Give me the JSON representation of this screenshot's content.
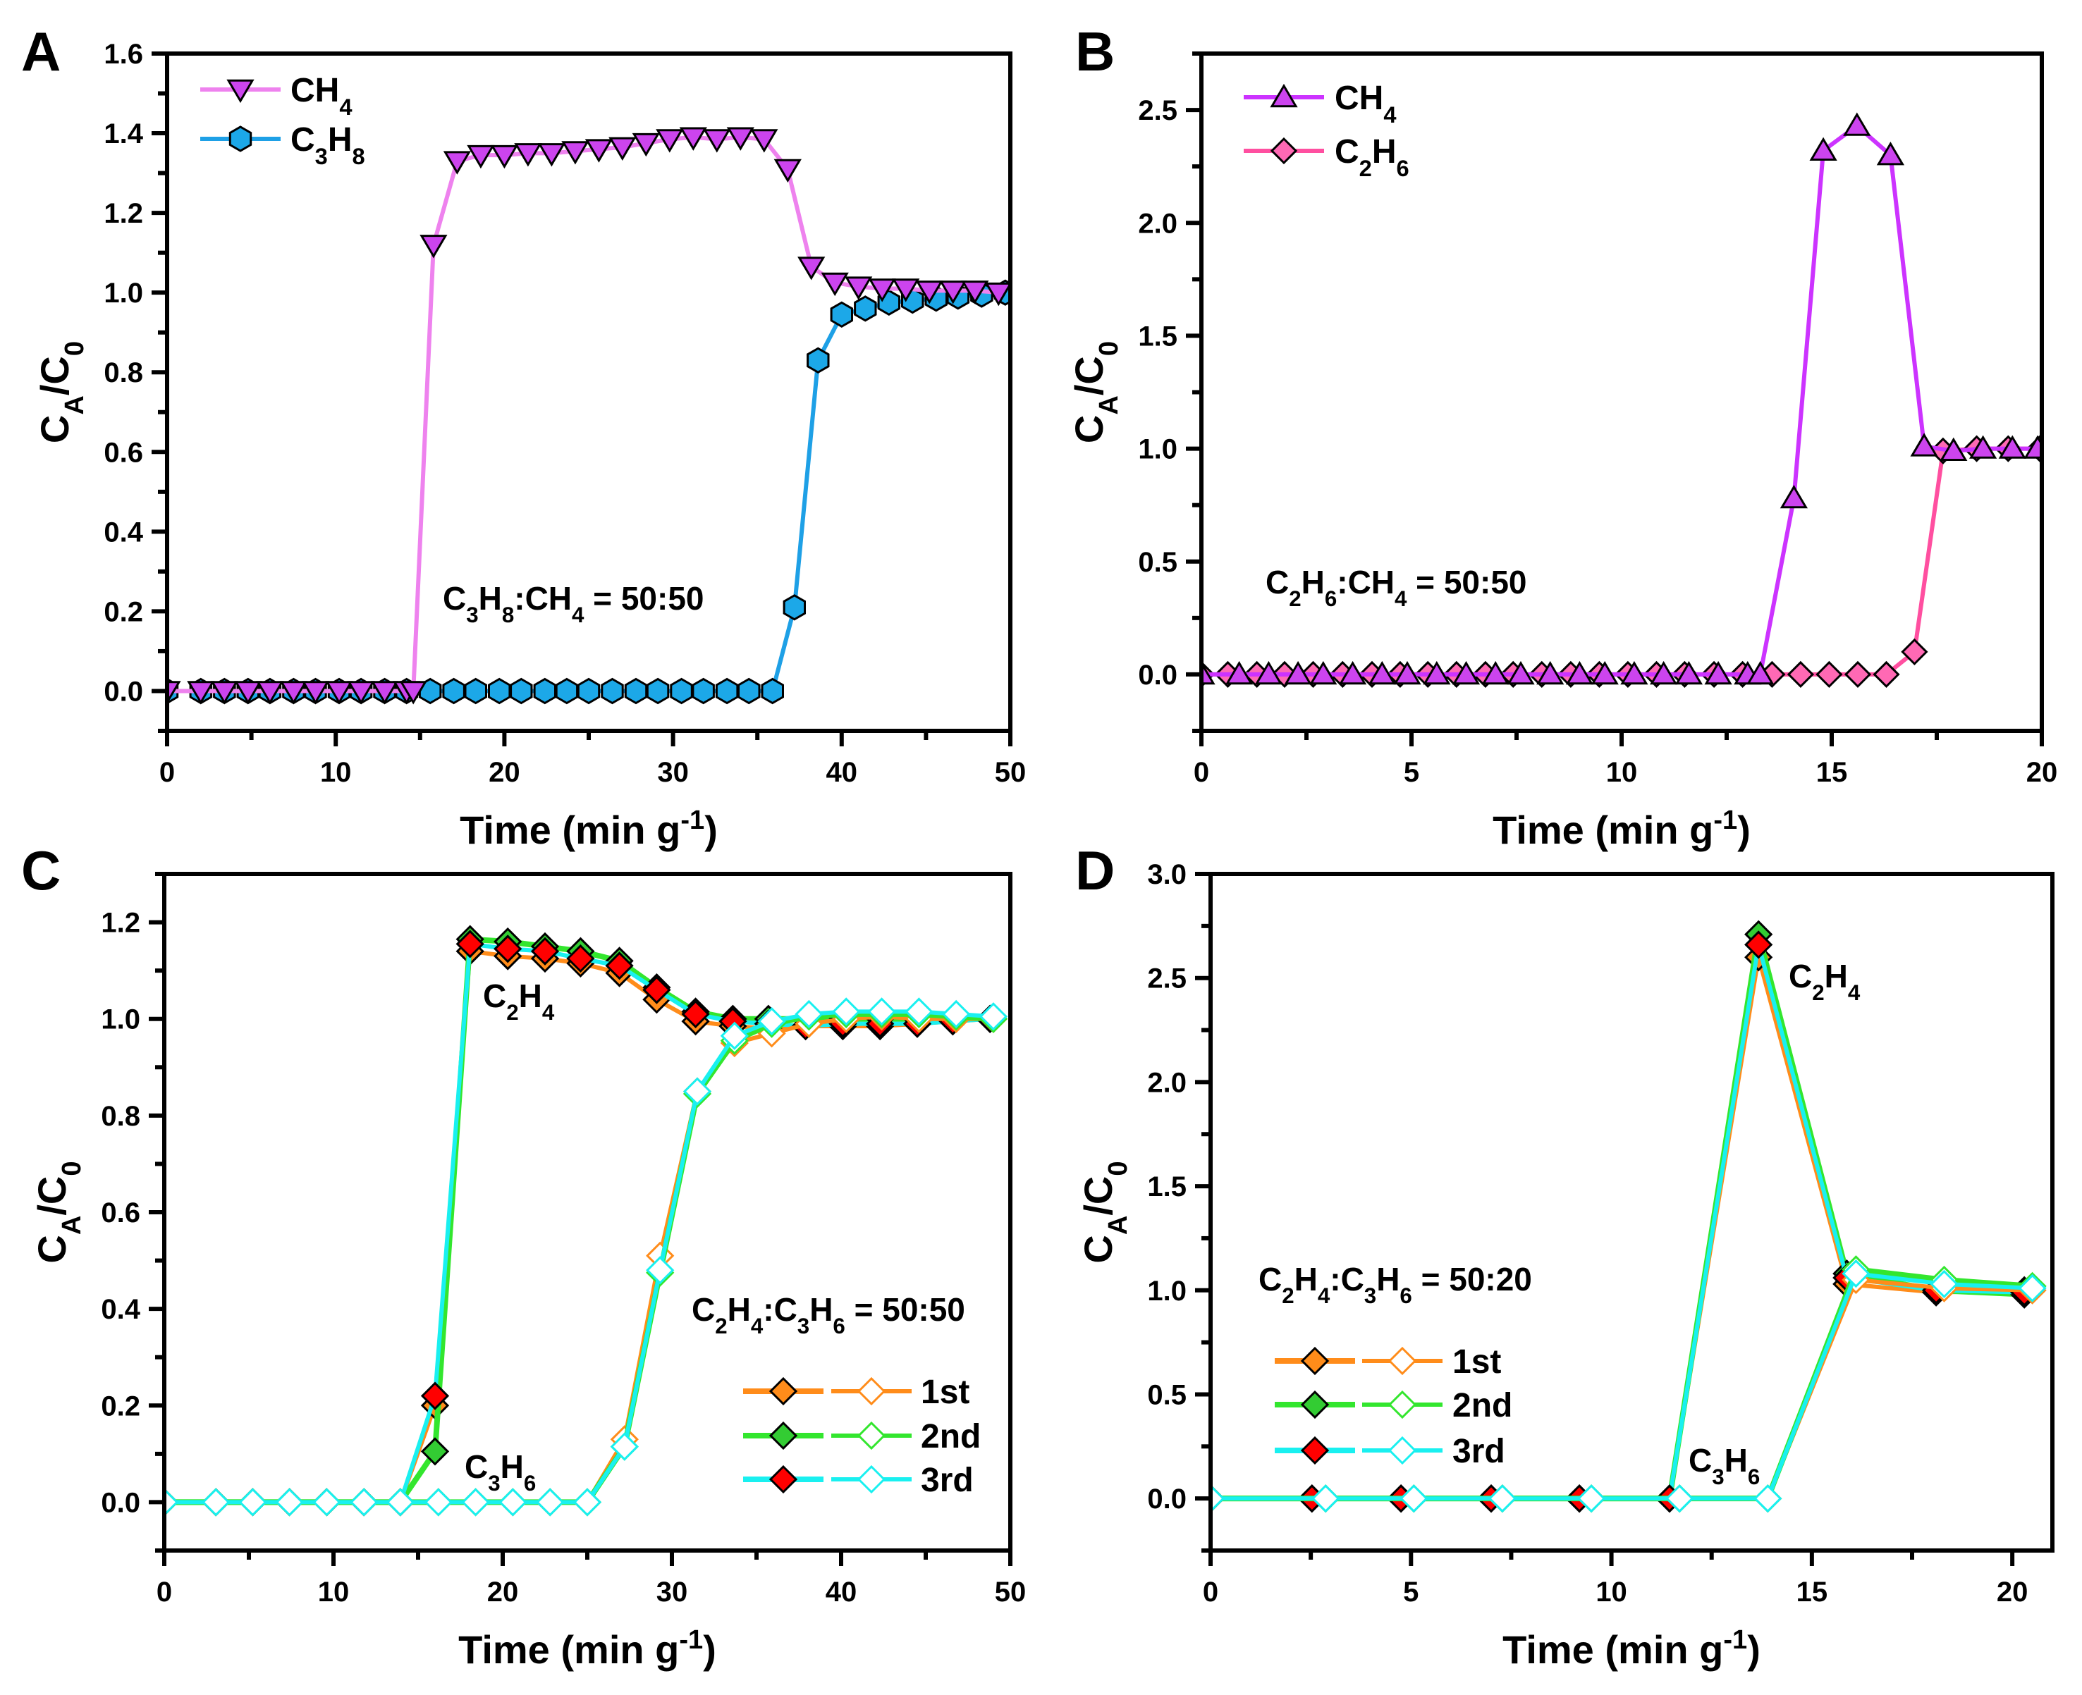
{
  "chart_data": [
    {
      "panel": "A",
      "type": "line",
      "xlabel": "Time (min g-1)",
      "ylabel": "CA/C0",
      "xlim": [
        0,
        50
      ],
      "ylim": [
        -0.1,
        1.6
      ],
      "xticks": [
        0,
        10,
        20,
        30,
        40,
        50
      ],
      "yticks": [
        0.0,
        0.2,
        0.4,
        0.6,
        0.8,
        1.0,
        1.2,
        1.4,
        1.6
      ],
      "grid": false,
      "legend_position": "top-left",
      "annotations": [
        "C3H8:CH4 = 50:50"
      ],
      "series": [
        {
          "name": "CH4",
          "marker": "triangle-down",
          "line_color": "#EE82EE",
          "marker_color": "#CC44EE",
          "x": [
            0,
            2.0,
            3.4,
            4.8,
            6.1,
            7.5,
            8.8,
            10.2,
            11.5,
            12.9,
            14.2,
            14.6,
            15.8,
            17.2,
            18.6,
            20.0,
            21.4,
            22.8,
            24.2,
            25.6,
            27.0,
            28.4,
            29.8,
            31.2,
            32.6,
            34.0,
            35.4,
            36.8,
            38.2,
            39.6,
            41.0,
            42.4,
            43.8,
            45.2,
            46.6,
            47.9,
            49.3
          ],
          "y": [
            0,
            0,
            0,
            0,
            0,
            0,
            0,
            0,
            0,
            0,
            0,
            0,
            1.12,
            1.33,
            1.345,
            1.345,
            1.35,
            1.35,
            1.355,
            1.36,
            1.365,
            1.375,
            1.385,
            1.39,
            1.385,
            1.39,
            1.385,
            1.31,
            1.065,
            1.025,
            1.015,
            1.01,
            1.01,
            1.005,
            1.005,
            1.005,
            1.0
          ]
        },
        {
          "name": "C3H8",
          "marker": "hexagon",
          "line_color": "#1EA0E6",
          "marker_color": "#1CA8E8",
          "x": [
            0,
            2.0,
            3.4,
            4.8,
            6.1,
            7.5,
            8.8,
            10.2,
            11.5,
            12.9,
            14.2,
            15.6,
            17.0,
            18.3,
            19.7,
            21.0,
            22.4,
            23.7,
            25.0,
            26.4,
            27.8,
            29.1,
            30.5,
            31.8,
            33.2,
            34.5,
            35.9,
            37.2,
            38.6,
            40.0,
            41.4,
            42.8,
            44.2,
            45.6,
            46.9,
            48.3,
            49.7
          ],
          "y": [
            0,
            0,
            0,
            0,
            0,
            0,
            0,
            0,
            0,
            0,
            0,
            0,
            0,
            0,
            0,
            0,
            0,
            0,
            0,
            0,
            0,
            0,
            0,
            0,
            0,
            0,
            0,
            0.21,
            0.83,
            0.945,
            0.96,
            0.975,
            0.98,
            0.985,
            0.99,
            0.995,
            1.0
          ]
        }
      ]
    },
    {
      "panel": "B",
      "type": "line",
      "xlabel": "Time (min g-1)",
      "ylabel": "CA/C0",
      "xlim": [
        0,
        20
      ],
      "ylim": [
        -0.25,
        2.75
      ],
      "xticks": [
        0,
        5,
        10,
        15,
        20
      ],
      "yticks": [
        0.0,
        0.5,
        1.0,
        1.5,
        2.0,
        2.5
      ],
      "grid": false,
      "legend_position": "top-left",
      "annotations": [
        "C2H6:CH4 = 50:50"
      ],
      "series": [
        {
          "name": "CH4",
          "marker": "triangle-up",
          "line_color": "#CC33FF",
          "marker_color": "#CC44EE",
          "x": [
            0,
            0.9,
            1.6,
            2.3,
            2.9,
            3.6,
            4.3,
            4.9,
            5.6,
            6.3,
            7.0,
            7.6,
            8.3,
            9.0,
            9.6,
            10.3,
            11.0,
            11.6,
            12.3,
            13.0,
            13.3,
            14.1,
            14.8,
            15.6,
            16.4,
            17.2,
            17.9,
            18.6,
            19.3,
            19.9
          ],
          "y": [
            0,
            0,
            0,
            0,
            0,
            0,
            0,
            0,
            0,
            0,
            0,
            0,
            0,
            0,
            0,
            0,
            0,
            0,
            0,
            0,
            0,
            0.78,
            2.32,
            2.43,
            2.3,
            1.01,
            0.99,
            1.0,
            1.0,
            1.0
          ]
        },
        {
          "name": "C2H6",
          "marker": "diamond",
          "line_color": "#FF4FA0",
          "marker_color": "#FF69B4",
          "x": [
            0,
            0.63,
            1.32,
            1.98,
            2.66,
            3.36,
            4.06,
            4.73,
            5.39,
            6.07,
            6.76,
            7.42,
            8.1,
            8.79,
            9.47,
            10.15,
            10.83,
            11.5,
            12.2,
            12.88,
            13.58,
            14.26,
            14.94,
            15.62,
            16.3,
            16.97,
            17.65,
            18.45,
            19.2,
            19.95
          ],
          "y": [
            0,
            0,
            0,
            0,
            0,
            0,
            0,
            0,
            0,
            0,
            0,
            0,
            0,
            0,
            0,
            0,
            0,
            0,
            0,
            0,
            0,
            0,
            0,
            0,
            0,
            0.1,
            0.99,
            1.0,
            1.0,
            1.0
          ]
        }
      ]
    },
    {
      "panel": "C",
      "type": "line",
      "xlabel": "Time (min g-1)",
      "ylabel": "CA/C0",
      "xlim": [
        0,
        50
      ],
      "ylim": [
        -0.1,
        1.3
      ],
      "xticks": [
        0,
        10,
        20,
        30,
        40,
        50
      ],
      "yticks": [
        0.0,
        0.2,
        0.4,
        0.6,
        0.8,
        1.0,
        1.2
      ],
      "grid": false,
      "legend_position": "bottom-right",
      "annotations": [
        "C2H4",
        "C3H6",
        "C2H4:C3H6 = 50:50"
      ],
      "legend": [
        "1st",
        "2nd",
        "3rd"
      ],
      "cycle_colors": {
        "1st": {
          "line": "#FF8C1A",
          "marker": "#FF8C1A"
        },
        "2nd": {
          "line": "#33E62E",
          "marker": "#33CC33"
        },
        "3rd": {
          "line": "#19F0F0",
          "marker": "#FF0000"
        }
      },
      "c2h4_x": [
        0,
        3.05,
        5.23,
        7.4,
        9.6,
        11.8,
        13.95,
        16.0,
        18.07,
        20.3,
        22.5,
        24.6,
        26.9,
        29.1,
        31.4,
        33.6,
        35.7,
        37.9,
        40.1,
        42.3,
        44.5,
        46.6,
        48.8
      ],
      "c3h6_x": [
        0,
        3.05,
        5.23,
        7.4,
        9.6,
        11.8,
        13.95,
        16.2,
        18.4,
        20.6,
        22.8,
        25.0,
        27.2,
        29.3,
        31.5,
        33.7,
        35.9,
        38.1,
        40.3,
        42.4,
        44.6,
        46.8,
        49.0
      ],
      "series": [
        {
          "name": "1st",
          "component": "C2H4",
          "filled": true,
          "y": [
            0,
            0,
            0,
            0,
            0,
            0,
            0,
            0.2,
            1.14,
            1.13,
            1.125,
            1.115,
            1.095,
            1.04,
            0.995,
            0.985,
            0.98,
            0.985,
            0.985,
            0.985,
            0.99,
            0.995,
            1.0
          ]
        },
        {
          "name": "2nd",
          "component": "C2H4",
          "filled": true,
          "y": [
            0,
            0,
            0,
            0,
            0,
            0,
            0,
            0.105,
            1.165,
            1.16,
            1.15,
            1.14,
            1.12,
            1.065,
            1.015,
            1.0,
            1.0,
            1.0,
            1.0,
            1.0,
            1.0,
            1.0,
            1.0
          ]
        },
        {
          "name": "3rd",
          "component": "C2H4",
          "filled": true,
          "y": [
            0,
            0,
            0,
            0,
            0,
            0,
            0,
            0.22,
            1.155,
            1.145,
            1.14,
            1.125,
            1.11,
            1.06,
            1.01,
            0.995,
            0.99,
            0.985,
            0.99,
            0.99,
            0.99,
            0.995,
            1.0
          ]
        },
        {
          "name": "1st",
          "component": "C3H6",
          "filled": false,
          "y": [
            0,
            0,
            0,
            0,
            0,
            0,
            0,
            0,
            0,
            0,
            0,
            0,
            0.13,
            0.51,
            0.85,
            0.95,
            0.97,
            0.99,
            1.0,
            1.005,
            1.0,
            1.0,
            1.0
          ]
        },
        {
          "name": "2nd",
          "component": "C3H6",
          "filled": false,
          "y": [
            0,
            0,
            0,
            0,
            0,
            0,
            0,
            0,
            0,
            0,
            0,
            0,
            0.115,
            0.475,
            0.845,
            0.955,
            0.99,
            1.005,
            1.01,
            1.01,
            1.01,
            1.005,
            1.0
          ]
        },
        {
          "name": "3rd",
          "component": "C3H6",
          "filled": false,
          "y": [
            0,
            0,
            0,
            0,
            0,
            0,
            0,
            0,
            0,
            0,
            0,
            0,
            0.115,
            0.48,
            0.85,
            0.965,
            0.995,
            1.01,
            1.015,
            1.015,
            1.015,
            1.01,
            1.005
          ]
        }
      ]
    },
    {
      "panel": "D",
      "type": "line",
      "xlabel": "Time (min g-1)",
      "ylabel": "CA/C0",
      "xlim": [
        0,
        21
      ],
      "ylim": [
        -0.25,
        3.0
      ],
      "xticks": [
        0,
        5,
        10,
        15,
        20
      ],
      "yticks": [
        0.0,
        0.5,
        1.0,
        1.5,
        2.0,
        2.5,
        3.0
      ],
      "grid": false,
      "legend_position": "center-left",
      "annotations": [
        "C2H4",
        "C3H6",
        "C2H4:C3H6 = 50:20"
      ],
      "legend": [
        "1st",
        "2nd",
        "3rd"
      ],
      "cycle_colors": {
        "1st": {
          "line": "#FF8C1A",
          "marker": "#FF8C1A"
        },
        "2nd": {
          "line": "#33E62E",
          "marker": "#33CC33"
        },
        "3rd": {
          "line": "#19F0F0",
          "marker": "#FF0000"
        }
      },
      "c2h4_x": [
        0,
        2.53,
        4.75,
        7.0,
        9.2,
        11.45,
        13.67,
        15.87,
        18.1,
        20.3
      ],
      "c3h6_x": [
        0,
        2.87,
        5.07,
        7.28,
        9.5,
        11.7,
        13.9,
        16.1,
        18.3,
        20.5
      ],
      "series": [
        {
          "name": "1st",
          "component": "C2H4",
          "filled": true,
          "y": [
            0,
            0,
            0,
            0,
            0,
            0,
            2.6,
            1.03,
            0.99,
            1.0
          ]
        },
        {
          "name": "2nd",
          "component": "C2H4",
          "filled": true,
          "y": [
            0,
            0,
            0,
            0,
            0,
            0,
            2.71,
            1.08,
            1.0,
            0.98
          ]
        },
        {
          "name": "3rd",
          "component": "C2H4",
          "filled": true,
          "y": [
            0,
            0,
            0,
            0,
            0,
            0,
            2.66,
            1.06,
            1.0,
            0.99
          ]
        },
        {
          "name": "1st",
          "component": "C3H6",
          "filled": false,
          "y": [
            0,
            0,
            0,
            0,
            0,
            0,
            0,
            1.05,
            1.01,
            1.0
          ]
        },
        {
          "name": "2nd",
          "component": "C3H6",
          "filled": false,
          "y": [
            0,
            0,
            0,
            0,
            0,
            0,
            0,
            1.1,
            1.05,
            1.02
          ]
        },
        {
          "name": "3rd",
          "component": "C3H6",
          "filled": false,
          "y": [
            0,
            0,
            0,
            0,
            0,
            0,
            0,
            1.08,
            1.03,
            1.01
          ]
        }
      ]
    }
  ]
}
